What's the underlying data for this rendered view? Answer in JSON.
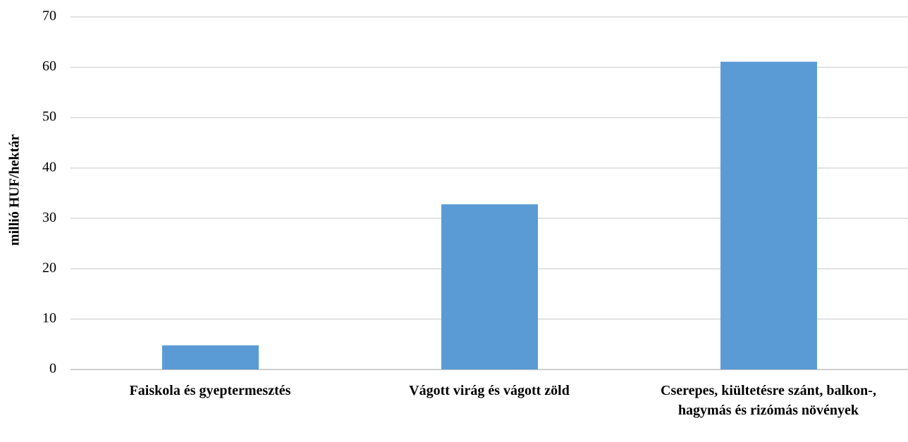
{
  "chart_data": {
    "type": "bar",
    "y_label": "millió HUF/hektár",
    "categories": [
      "Faiskola és gyeptermesztés",
      "Vágott virág és vágott zöld",
      "Cserepes, kiültetésre szánt, balkon-, hagymás és rizómás növények"
    ],
    "values": [
      4.8,
      32.8,
      61.1
    ],
    "color": "#5b9bd5",
    "ylim": [
      0,
      70
    ],
    "yticks": [
      0,
      10,
      20,
      30,
      40,
      50,
      60,
      70
    ],
    "grid": true
  }
}
